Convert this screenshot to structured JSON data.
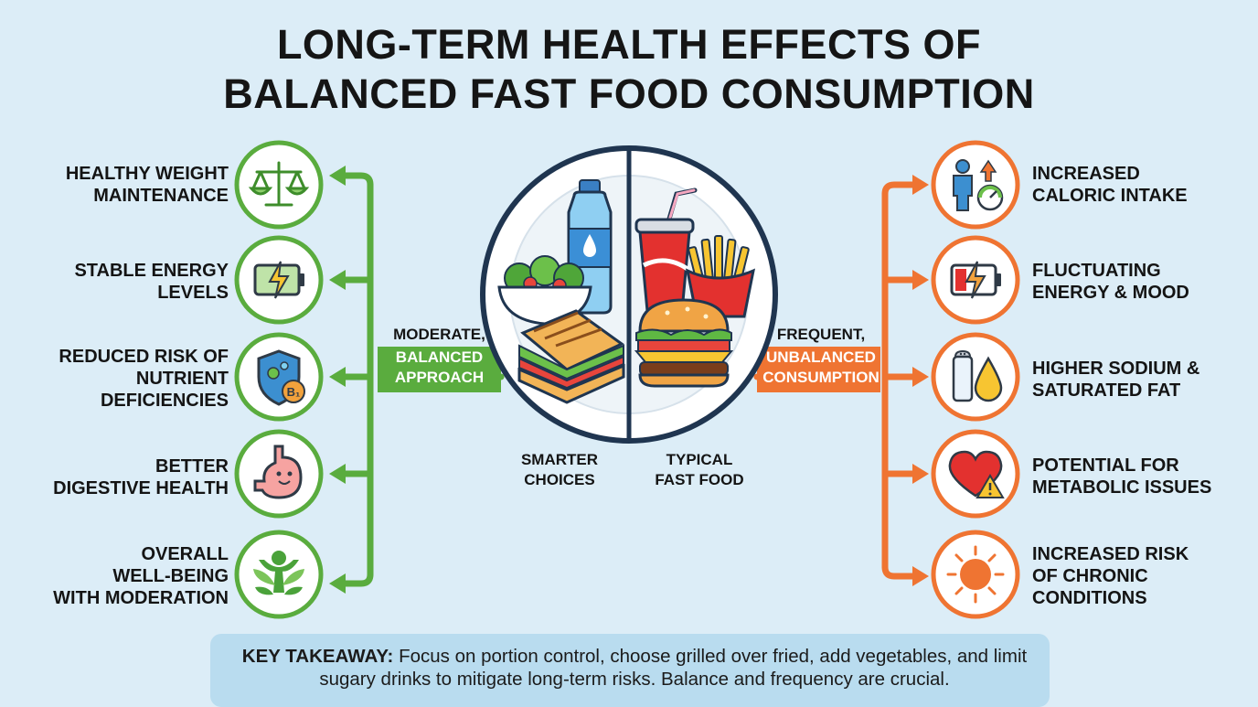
{
  "title": {
    "line1": "LONG-TERM HEALTH EFFECTS OF",
    "line2": "BALANCED FAST FOOD CONSUMPTION"
  },
  "colors": {
    "green": "#5aac3e",
    "orange": "#ef7432",
    "background": "#dcedf7",
    "takeaway_bg": "#b9dcef"
  },
  "left_effects": [
    {
      "lines": [
        "HEALTHY WEIGHT",
        "MAINTENANCE"
      ],
      "icon": "scale-icon"
    },
    {
      "lines": [
        "STABLE ENERGY",
        "LEVELS"
      ],
      "icon": "battery-charging-icon"
    },
    {
      "lines": [
        "REDUCED RISK OF",
        "NUTRIENT",
        "DEFICIENCIES"
      ],
      "icon": "vitamin-shield-icon",
      "icon_text": "B₁"
    },
    {
      "lines": [
        "BETTER",
        "DIGESTIVE HEALTH"
      ],
      "icon": "happy-stomach-icon"
    },
    {
      "lines": [
        "OVERALL",
        "WELL-BEING",
        "WITH MODERATION"
      ],
      "icon": "wellbeing-person-icon"
    }
  ],
  "right_effects": [
    {
      "lines": [
        "INCREASED",
        "CALORIC INTAKE"
      ],
      "icon": "person-gauge-icon"
    },
    {
      "lines": [
        "FLUCTUATING",
        "ENERGY & MOOD"
      ],
      "icon": "low-battery-icon"
    },
    {
      "lines": [
        "HIGHER SODIUM &",
        "SATURATED FAT"
      ],
      "icon": "salt-oil-icon"
    },
    {
      "lines": [
        "POTENTIAL FOR",
        "METABOLIC ISSUES"
      ],
      "icon": "heart-warning-icon"
    },
    {
      "lines": [
        "INCREASED RISK",
        "OF CHRONIC",
        "CONDITIONS"
      ],
      "icon": "virus-icon"
    }
  ],
  "left_approach": {
    "top": "MODERATE,",
    "band_line1": "BALANCED",
    "band_line2": "APPROACH"
  },
  "right_approach": {
    "top": "FREQUENT,",
    "band_line1": "UNBALANCED",
    "band_line2": "CONSUMPTION"
  },
  "plate": {
    "left_caption": [
      "SMARTER",
      "CHOICES"
    ],
    "right_caption": [
      "TYPICAL",
      "FAST FOOD"
    ],
    "left_items": [
      "water-bottle-icon",
      "salad-bowl-icon",
      "grilled-sandwich-icon"
    ],
    "right_items": [
      "soda-cup-icon",
      "fries-icon",
      "burger-icon"
    ]
  },
  "takeaway": {
    "label": "KEY TAKEAWAY:",
    "text": "Focus on portion control, choose grilled over fried, add vegetables, and limit sugary drinks to mitigate long-term risks. Balance and frequency are crucial."
  }
}
